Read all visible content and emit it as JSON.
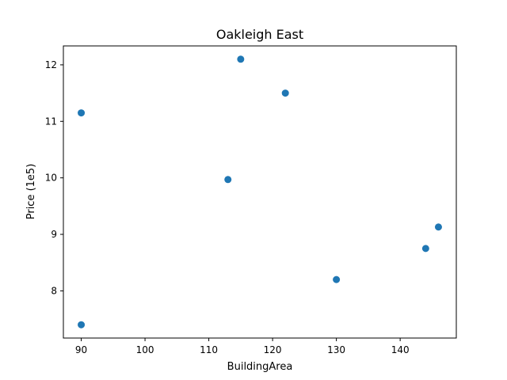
{
  "chart_data": {
    "type": "scatter",
    "title": "Oakleigh East",
    "xlabel": "BuildingArea",
    "ylabel": "Price (1e5)",
    "xlim": [
      87.2,
      148.8
    ],
    "ylim": [
      7.165,
      12.335
    ],
    "xticks": [
      90,
      100,
      110,
      120,
      130,
      140
    ],
    "yticks": [
      8,
      9,
      10,
      11,
      12
    ],
    "grid": false,
    "marker_color": "#1f77b4",
    "points": [
      {
        "x": 90,
        "y": 11.15
      },
      {
        "x": 90,
        "y": 7.4
      },
      {
        "x": 113,
        "y": 9.97
      },
      {
        "x": 115,
        "y": 12.1
      },
      {
        "x": 122,
        "y": 11.5
      },
      {
        "x": 130,
        "y": 8.2
      },
      {
        "x": 144,
        "y": 8.75
      },
      {
        "x": 146,
        "y": 9.13
      }
    ]
  }
}
